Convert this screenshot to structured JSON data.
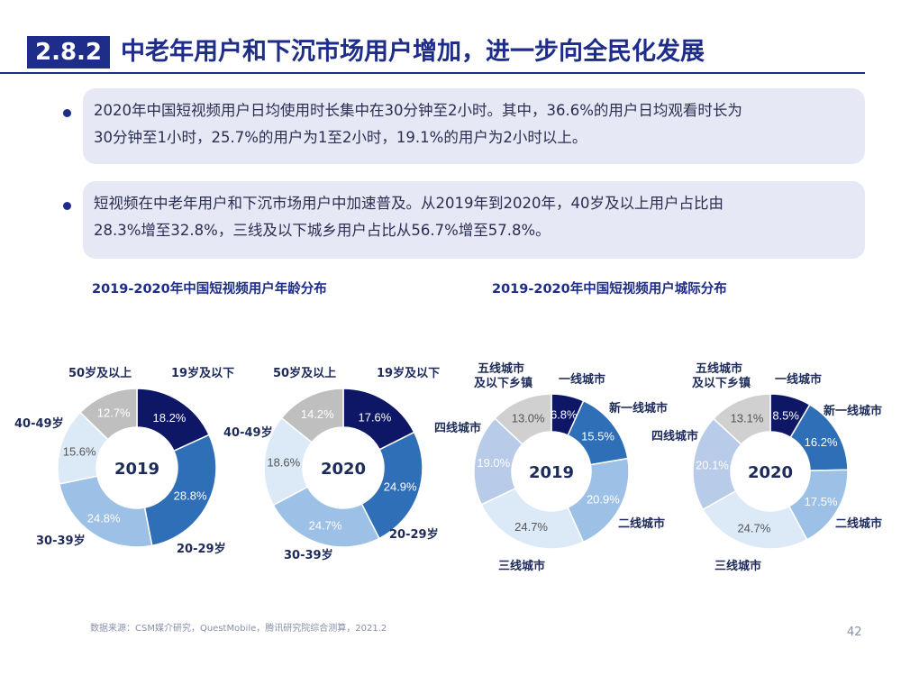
{
  "header": {
    "section_number": "2.8.2",
    "title": "中老年用户和下沉市场用户增加，进一步向全民化发展"
  },
  "bullets": [
    {
      "line1": "2020年中国短视频用户日均使用时长集中在30分钟至2小时。其中，36.6%的用户日均观看时长为",
      "line2": "30分钟至1小时，25.7%的用户为1至2小时，19.1%的用户为2小时以上。"
    },
    {
      "line1": "短视频在中老年用户和下沉市场用户中加速普及。从2019年到2020年，40岁及以上用户占比由",
      "line2": "28.3%增至32.8%，三线及以下城乡用户占比从56.7%增至57.8%。"
    }
  ],
  "charts_titles": {
    "age": "2019-2020年中国短视频用户年龄分布",
    "city": "2019-2020年中国短视频用户城际分布"
  },
  "chart_data": [
    {
      "type": "pie",
      "title": "2019",
      "categories": [
        "19岁及以下",
        "20-29岁",
        "30-39岁",
        "40-49岁",
        "50岁及以上"
      ],
      "values": [
        18.2,
        28.8,
        24.8,
        15.6,
        12.7
      ],
      "colors": [
        "#0d1766",
        "#2e6fb8",
        "#9cc0e6",
        "#dce9f6",
        "#bfbfbf"
      ],
      "text_colors": [
        "#ffffff",
        "#ffffff",
        "#ffffff",
        "#555555",
        "#ffffff"
      ]
    },
    {
      "type": "pie",
      "title": "2020",
      "categories": [
        "19岁及以下",
        "20-29岁",
        "30-39岁",
        "40-49岁",
        "50岁及以上"
      ],
      "values": [
        17.6,
        24.9,
        24.7,
        18.6,
        14.2
      ],
      "colors": [
        "#0d1766",
        "#2e6fb8",
        "#9cc0e6",
        "#dce9f6",
        "#bfbfbf"
      ],
      "text_colors": [
        "#ffffff",
        "#ffffff",
        "#ffffff",
        "#555555",
        "#ffffff"
      ]
    },
    {
      "type": "pie",
      "title": "2019",
      "categories": [
        "一线城市",
        "新一线城市",
        "二线城市",
        "三线城市",
        "四线城市",
        "五线城市及以下乡镇"
      ],
      "values": [
        6.8,
        15.5,
        20.9,
        24.7,
        19.0,
        13.0
      ],
      "colors": [
        "#0d1766",
        "#2e6fb8",
        "#9cc0e6",
        "#dce9f6",
        "#b8cbe8",
        "#d0d0d0"
      ],
      "text_colors": [
        "#ffffff",
        "#ffffff",
        "#ffffff",
        "#555555",
        "#ffffff",
        "#555555"
      ]
    },
    {
      "type": "pie",
      "title": "2020",
      "categories": [
        "一线城市",
        "新一线城市",
        "二线城市",
        "三线城市",
        "四线城市",
        "五线城市及以下乡镇"
      ],
      "values": [
        8.5,
        16.2,
        17.5,
        24.7,
        20.1,
        13.1
      ],
      "colors": [
        "#0d1766",
        "#2e6fb8",
        "#9cc0e6",
        "#dce9f6",
        "#b8cbe8",
        "#d0d0d0"
      ],
      "text_colors": [
        "#ffffff",
        "#ffffff",
        "#ffffff",
        "#555555",
        "#ffffff",
        "#555555"
      ]
    }
  ],
  "footer": {
    "source": "数据来源：CSM媒介研究，QuestMobile，腾讯研究院综合测算，2021.2",
    "page": "42"
  }
}
